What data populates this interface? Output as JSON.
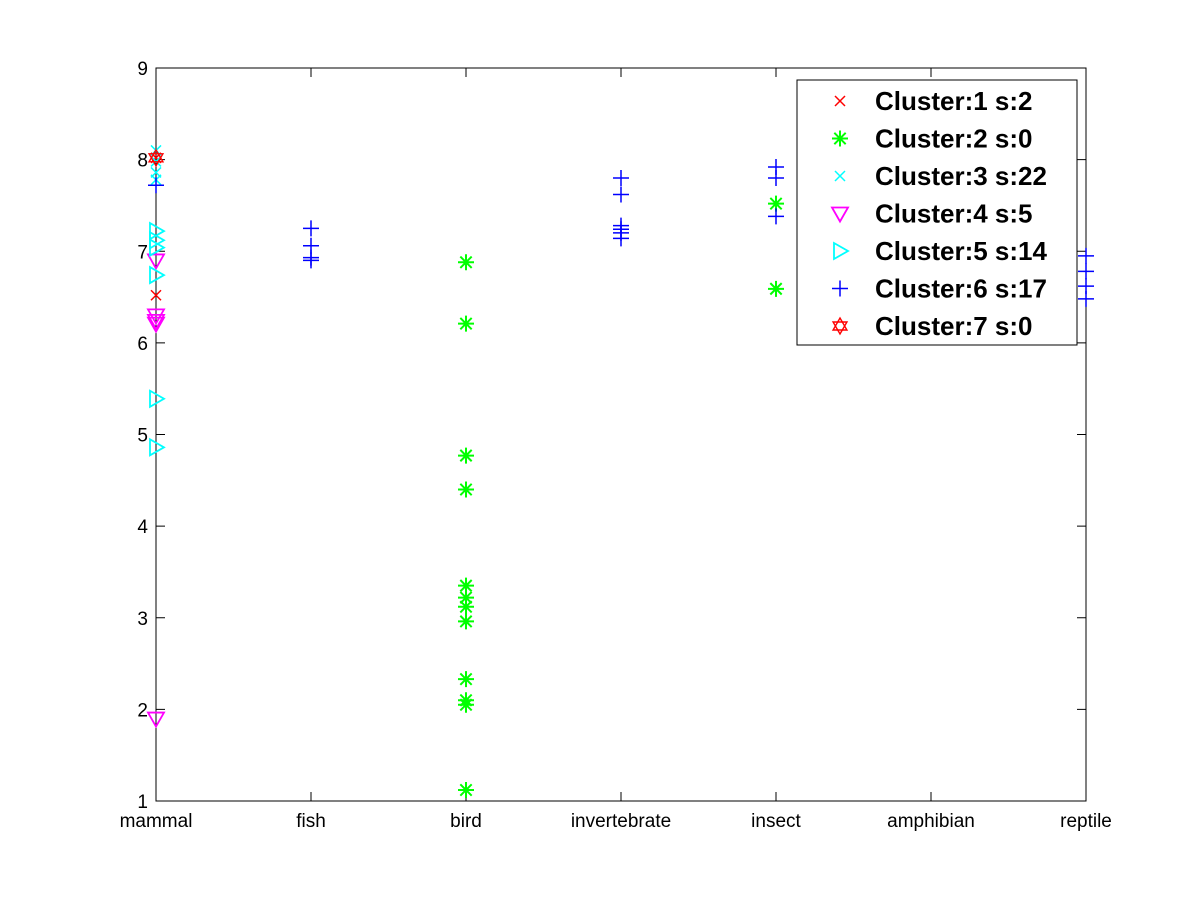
{
  "chart_data": {
    "type": "scatter",
    "title": "",
    "xlabel": "",
    "ylabel": "",
    "categories": [
      "mammal",
      "fish",
      "bird",
      "invertebrate",
      "insect",
      "amphibian",
      "reptile"
    ],
    "xlim": [
      1,
      7
    ],
    "ylim": [
      1,
      9
    ],
    "yticks": [
      1,
      2,
      3,
      4,
      5,
      6,
      7,
      8,
      9
    ],
    "grid": false,
    "legend_position": "top-right",
    "series": [
      {
        "name": "Cluster:1 s:2",
        "marker": "x",
        "color": "#ff0000",
        "points": [
          [
            1,
            6.52
          ],
          [
            1,
            8.02
          ]
        ]
      },
      {
        "name": "Cluster:2 s:0",
        "marker": "asterisk",
        "color": "#00ff00",
        "points": [
          [
            3,
            6.88
          ],
          [
            3,
            6.21
          ],
          [
            3,
            4.77
          ],
          [
            3,
            4.4
          ],
          [
            3,
            3.35
          ],
          [
            3,
            3.22
          ],
          [
            3,
            3.12
          ],
          [
            3,
            2.96
          ],
          [
            3,
            2.33
          ],
          [
            3,
            2.1
          ],
          [
            3,
            2.05
          ],
          [
            3,
            1.12
          ],
          [
            5,
            7.52
          ],
          [
            5,
            6.59
          ]
        ]
      },
      {
        "name": "Cluster:3 s:22",
        "marker": "x",
        "color": "#00ffff",
        "points": [
          [
            1,
            8.1
          ],
          [
            1,
            7.98
          ],
          [
            1,
            7.86
          ],
          [
            1,
            7.78
          ]
        ]
      },
      {
        "name": "Cluster:4 s:5",
        "marker": "triangle-down",
        "color": "#ff00ff",
        "points": [
          [
            1,
            6.9
          ],
          [
            1,
            6.3
          ],
          [
            1,
            6.24
          ],
          [
            1,
            6.21
          ],
          [
            1,
            1.9
          ]
        ]
      },
      {
        "name": "Cluster:5 s:14",
        "marker": "triangle-right",
        "color": "#00ffff",
        "points": [
          [
            1,
            7.22
          ],
          [
            1,
            7.12
          ],
          [
            1,
            7.04
          ],
          [
            1,
            6.74
          ],
          [
            1,
            5.39
          ],
          [
            1,
            4.86
          ]
        ]
      },
      {
        "name": "Cluster:6 s:17",
        "marker": "plus",
        "color": "#0000ff",
        "points": [
          [
            1,
            7.72
          ],
          [
            2,
            7.25
          ],
          [
            2,
            7.06
          ],
          [
            2,
            6.93
          ],
          [
            2,
            6.9
          ],
          [
            4,
            7.8
          ],
          [
            4,
            7.62
          ],
          [
            4,
            7.28
          ],
          [
            4,
            7.24
          ],
          [
            4,
            7.2
          ],
          [
            4,
            7.14
          ],
          [
            5,
            7.92
          ],
          [
            5,
            7.8
          ],
          [
            5,
            7.38
          ],
          [
            7,
            6.95
          ],
          [
            7,
            6.78
          ],
          [
            7,
            6.62
          ],
          [
            7,
            6.48
          ]
        ]
      },
      {
        "name": "Cluster:7 s:0",
        "marker": "hexagram",
        "color": "#ff0000",
        "points": [
          [
            1,
            8.02
          ]
        ]
      }
    ]
  }
}
